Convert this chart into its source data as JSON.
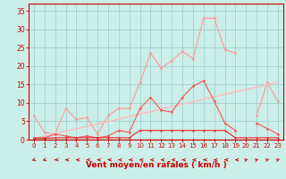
{
  "x": [
    0,
    1,
    2,
    3,
    4,
    5,
    6,
    7,
    8,
    9,
    10,
    11,
    12,
    13,
    14,
    15,
    16,
    17,
    18,
    19,
    20,
    21,
    22,
    23
  ],
  "series": [
    {
      "name": "rafales_light",
      "color": "#ff9999",
      "linewidth": 0.8,
      "markersize": 2.0,
      "values": [
        6.5,
        2.0,
        1.5,
        8.5,
        5.5,
        6.0,
        1.5,
        6.5,
        8.5,
        8.5,
        15.5,
        23.5,
        19.5,
        21.5,
        24.0,
        22.0,
        33.0,
        33.0,
        24.5,
        23.5,
        null,
        null,
        null,
        null
      ]
    },
    {
      "name": "rafales_light2",
      "color": "#ff9999",
      "linewidth": 0.8,
      "markersize": 2.0,
      "values": [
        null,
        null,
        null,
        null,
        null,
        null,
        null,
        null,
        null,
        null,
        null,
        null,
        null,
        null,
        null,
        null,
        null,
        null,
        null,
        null,
        null,
        6.5,
        15.5,
        10.5
      ]
    },
    {
      "name": "trend_linear",
      "color": "#ffbbbb",
      "linewidth": 1.0,
      "markersize": 0,
      "values": [
        0.3,
        1.0,
        1.6,
        2.3,
        2.9,
        3.6,
        4.3,
        4.9,
        5.6,
        6.3,
        7.0,
        7.6,
        8.3,
        9.0,
        9.6,
        10.3,
        11.0,
        11.6,
        12.3,
        13.0,
        13.6,
        14.3,
        15.0,
        15.6
      ]
    },
    {
      "name": "moyen_medium",
      "color": "#ff5555",
      "linewidth": 0.8,
      "markersize": 2.0,
      "values": [
        0.5,
        0.5,
        1.5,
        1.0,
        0.5,
        1.0,
        0.5,
        1.0,
        2.5,
        2.0,
        8.5,
        11.5,
        8.0,
        7.5,
        11.5,
        14.5,
        16.0,
        10.5,
        4.5,
        2.5,
        null,
        null,
        null,
        null
      ]
    },
    {
      "name": "moyen_medium2",
      "color": "#ff5555",
      "linewidth": 0.8,
      "markersize": 2.0,
      "values": [
        null,
        null,
        null,
        null,
        null,
        null,
        null,
        null,
        null,
        null,
        null,
        null,
        null,
        null,
        null,
        null,
        null,
        null,
        null,
        null,
        null,
        4.5,
        3.0,
        1.5
      ]
    },
    {
      "name": "flat_step",
      "color": "#ee2222",
      "linewidth": 0.8,
      "markersize": 1.5,
      "values": [
        0.3,
        0.3,
        0.5,
        0.5,
        0.5,
        0.5,
        0.5,
        0.5,
        0.5,
        0.5,
        2.5,
        2.5,
        2.5,
        2.5,
        2.5,
        2.5,
        2.5,
        2.5,
        2.5,
        0.5,
        0.5,
        0.5,
        0.5,
        0.5
      ]
    },
    {
      "name": "flat_bottom",
      "color": "#cc0000",
      "linewidth": 0.8,
      "markersize": 1.5,
      "values": [
        0.1,
        0.1,
        0.1,
        0.1,
        0.1,
        0.1,
        0.1,
        0.1,
        0.1,
        0.1,
        0.1,
        0.1,
        0.1,
        0.1,
        0.1,
        0.1,
        0.1,
        0.1,
        0.1,
        0.1,
        0.1,
        0.1,
        0.1,
        0.1
      ]
    }
  ],
  "wind_arrows": {
    "x": [
      0,
      1,
      2,
      3,
      4,
      5,
      6,
      7,
      8,
      9,
      10,
      11,
      12,
      13,
      14,
      15,
      16,
      17,
      18,
      19,
      20,
      21,
      22,
      23
    ],
    "angles_deg": [
      225,
      225,
      270,
      270,
      270,
      270,
      270,
      270,
      270,
      270,
      270,
      270,
      270,
      270,
      270,
      270,
      270,
      270,
      270,
      270,
      45,
      45,
      45,
      45
    ]
  },
  "xlim": [
    -0.5,
    23.5
  ],
  "ylim": [
    0,
    37
  ],
  "yticks": [
    0,
    5,
    10,
    15,
    20,
    25,
    30,
    35
  ],
  "xticks": [
    0,
    1,
    2,
    3,
    4,
    5,
    6,
    7,
    8,
    9,
    10,
    11,
    12,
    13,
    14,
    15,
    16,
    17,
    18,
    19,
    20,
    21,
    22,
    23
  ],
  "xlabel": "Vent moyen/en rafales ( km/h )",
  "bg_color": "#cceee8",
  "grid_color": "#99cccc",
  "tick_color": "#cc0000",
  "label_color": "#cc0000",
  "axis_color": "#cc0000"
}
